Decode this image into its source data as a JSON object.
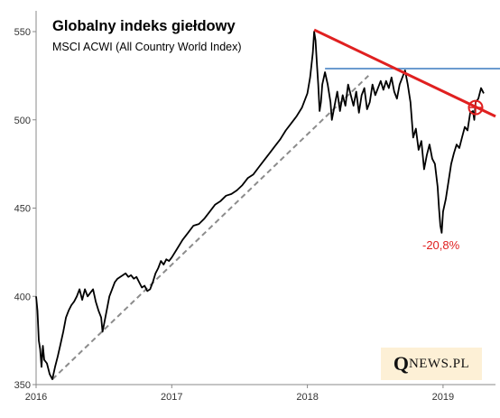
{
  "chart_data": {
    "type": "line",
    "title": "Globalny indeks giełdowy",
    "subtitle": "MSCI ACWI (All Country World Index)",
    "xlabel": "",
    "ylabel": "",
    "xlim": [
      2016.0,
      2019.32
    ],
    "ylim": [
      350,
      560
    ],
    "x_ticks": [
      "2016",
      "2017",
      "2018",
      "2019"
    ],
    "y_ticks": [
      350,
      400,
      450,
      500,
      550
    ],
    "grid": false,
    "series": [
      {
        "color": "#000000",
        "points": [
          [
            2016.0,
            400
          ],
          [
            2016.01,
            392
          ],
          [
            2016.02,
            375
          ],
          [
            2016.03,
            370
          ],
          [
            2016.04,
            360
          ],
          [
            2016.05,
            372
          ],
          [
            2016.06,
            364
          ],
          [
            2016.08,
            362
          ],
          [
            2016.1,
            356
          ],
          [
            2016.12,
            353
          ],
          [
            2016.14,
            360
          ],
          [
            2016.16,
            366
          ],
          [
            2016.18,
            373
          ],
          [
            2016.2,
            380
          ],
          [
            2016.22,
            388
          ],
          [
            2016.24,
            392
          ],
          [
            2016.26,
            395
          ],
          [
            2016.28,
            397
          ],
          [
            2016.3,
            400
          ],
          [
            2016.32,
            404
          ],
          [
            2016.34,
            398
          ],
          [
            2016.36,
            404
          ],
          [
            2016.38,
            400
          ],
          [
            2016.4,
            402
          ],
          [
            2016.42,
            404
          ],
          [
            2016.44,
            397
          ],
          [
            2016.46,
            392
          ],
          [
            2016.48,
            388
          ],
          [
            2016.49,
            380
          ],
          [
            2016.5,
            384
          ],
          [
            2016.52,
            392
          ],
          [
            2016.54,
            400
          ],
          [
            2016.56,
            404
          ],
          [
            2016.58,
            408
          ],
          [
            2016.6,
            410
          ],
          [
            2016.62,
            411
          ],
          [
            2016.64,
            412
          ],
          [
            2016.66,
            413
          ],
          [
            2016.68,
            411
          ],
          [
            2016.7,
            412
          ],
          [
            2016.72,
            410
          ],
          [
            2016.74,
            411
          ],
          [
            2016.76,
            408
          ],
          [
            2016.78,
            405
          ],
          [
            2016.8,
            406
          ],
          [
            2016.82,
            403
          ],
          [
            2016.84,
            404
          ],
          [
            2016.86,
            408
          ],
          [
            2016.88,
            413
          ],
          [
            2016.9,
            416
          ],
          [
            2016.92,
            420
          ],
          [
            2016.94,
            418
          ],
          [
            2016.96,
            421
          ],
          [
            2016.98,
            420
          ],
          [
            2017.0,
            422
          ],
          [
            2017.04,
            427
          ],
          [
            2017.08,
            432
          ],
          [
            2017.12,
            436
          ],
          [
            2017.16,
            440
          ],
          [
            2017.2,
            441
          ],
          [
            2017.24,
            444
          ],
          [
            2017.28,
            448
          ],
          [
            2017.32,
            452
          ],
          [
            2017.36,
            454
          ],
          [
            2017.4,
            457
          ],
          [
            2017.44,
            458
          ],
          [
            2017.48,
            460
          ],
          [
            2017.52,
            463
          ],
          [
            2017.56,
            467
          ],
          [
            2017.6,
            469
          ],
          [
            2017.64,
            473
          ],
          [
            2017.68,
            477
          ],
          [
            2017.72,
            481
          ],
          [
            2017.76,
            485
          ],
          [
            2017.8,
            489
          ],
          [
            2017.84,
            494
          ],
          [
            2017.88,
            498
          ],
          [
            2017.92,
            502
          ],
          [
            2017.96,
            507
          ],
          [
            2018.0,
            515
          ],
          [
            2018.02,
            524
          ],
          [
            2018.04,
            538
          ],
          [
            2018.05,
            550
          ],
          [
            2018.06,
            545
          ],
          [
            2018.07,
            532
          ],
          [
            2018.08,
            520
          ],
          [
            2018.09,
            505
          ],
          [
            2018.1,
            510
          ],
          [
            2018.11,
            520
          ],
          [
            2018.13,
            527
          ],
          [
            2018.15,
            520
          ],
          [
            2018.17,
            510
          ],
          [
            2018.18,
            500
          ],
          [
            2018.2,
            508
          ],
          [
            2018.22,
            516
          ],
          [
            2018.24,
            505
          ],
          [
            2018.26,
            514
          ],
          [
            2018.28,
            508
          ],
          [
            2018.3,
            520
          ],
          [
            2018.32,
            514
          ],
          [
            2018.34,
            508
          ],
          [
            2018.36,
            516
          ],
          [
            2018.38,
            504
          ],
          [
            2018.4,
            514
          ],
          [
            2018.42,
            518
          ],
          [
            2018.44,
            506
          ],
          [
            2018.46,
            510
          ],
          [
            2018.48,
            520
          ],
          [
            2018.5,
            514
          ],
          [
            2018.52,
            518
          ],
          [
            2018.54,
            522
          ],
          [
            2018.56,
            517
          ],
          [
            2018.58,
            522
          ],
          [
            2018.6,
            518
          ],
          [
            2018.62,
            524
          ],
          [
            2018.64,
            516
          ],
          [
            2018.66,
            512
          ],
          [
            2018.68,
            520
          ],
          [
            2018.7,
            524
          ],
          [
            2018.72,
            528
          ],
          [
            2018.74,
            520
          ],
          [
            2018.76,
            510
          ],
          [
            2018.77,
            500
          ],
          [
            2018.78,
            490
          ],
          [
            2018.8,
            495
          ],
          [
            2018.82,
            483
          ],
          [
            2018.84,
            488
          ],
          [
            2018.86,
            472
          ],
          [
            2018.88,
            480
          ],
          [
            2018.9,
            486
          ],
          [
            2018.92,
            478
          ],
          [
            2018.94,
            475
          ],
          [
            2018.96,
            462
          ],
          [
            2018.97,
            450
          ],
          [
            2018.98,
            440
          ],
          [
            2018.99,
            436
          ],
          [
            2019.0,
            448
          ],
          [
            2019.02,
            455
          ],
          [
            2019.04,
            465
          ],
          [
            2019.06,
            475
          ],
          [
            2019.08,
            481
          ],
          [
            2019.1,
            486
          ],
          [
            2019.12,
            484
          ],
          [
            2019.14,
            490
          ],
          [
            2019.16,
            496
          ],
          [
            2019.18,
            494
          ],
          [
            2019.2,
            504
          ],
          [
            2019.22,
            505
          ],
          [
            2019.23,
            500
          ],
          [
            2019.24,
            510
          ],
          [
            2019.26,
            512
          ],
          [
            2019.28,
            518
          ],
          [
            2019.3,
            515
          ]
        ]
      }
    ],
    "trend_lines": [
      {
        "style": "dashed",
        "color": "#8c8c8c",
        "from": [
          2016.12,
          353
        ],
        "to": [
          2018.45,
          525
        ]
      },
      {
        "style": "solid",
        "color": "#e02020",
        "from": [
          2018.05,
          551
        ],
        "to": [
          2019.32,
          503
        ]
      },
      {
        "style": "solid",
        "color": "#3a7abf",
        "from": [
          2018.13,
          529
        ],
        "to": [
          2019.32,
          529
        ]
      }
    ],
    "markers": [
      {
        "type": "target",
        "color": "#e02020",
        "at": [
          2019.24,
          507
        ]
      }
    ],
    "annotations": [
      {
        "text": "-20,8%",
        "color": "#e02020"
      }
    ]
  },
  "logo": {
    "big": "Q",
    "small": "NEWS.PL"
  }
}
